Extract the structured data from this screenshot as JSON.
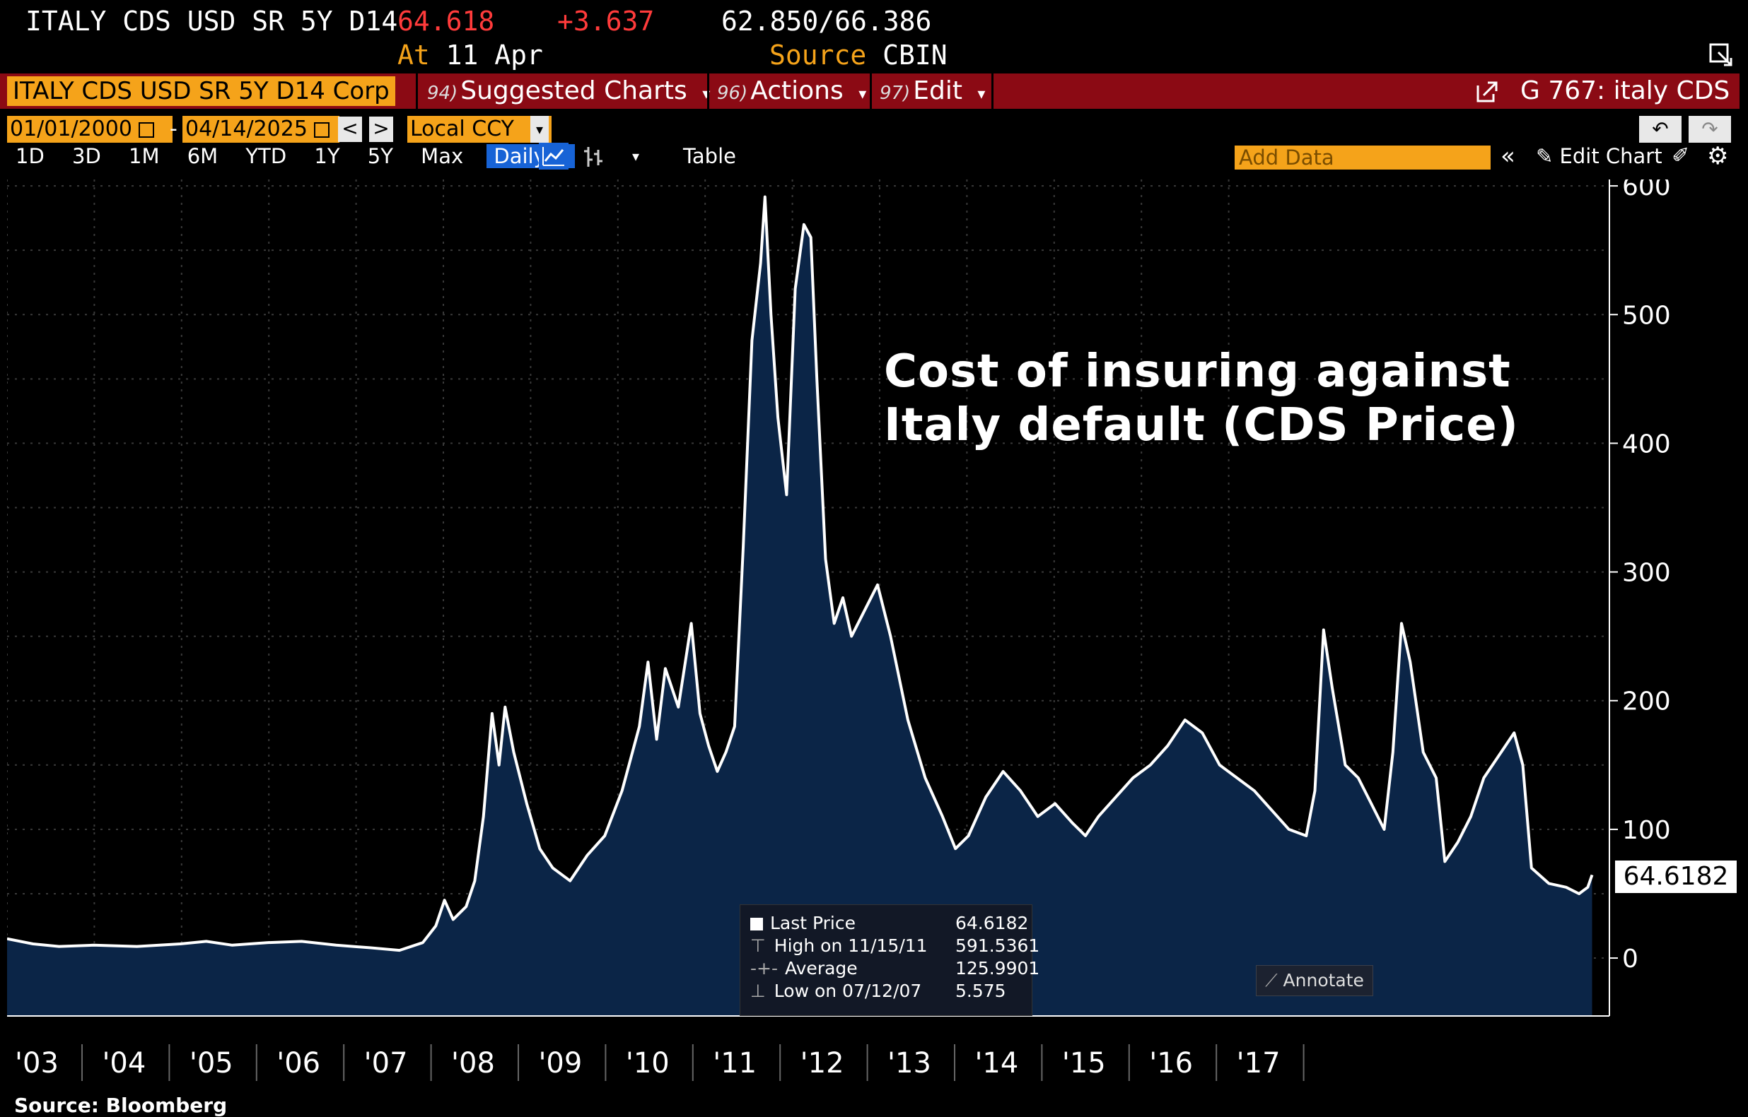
{
  "header": {
    "ticker": "ITALY CDS USD SR 5Y D14",
    "last": "64.618",
    "change": "+3.637",
    "range_low": "62.850",
    "range_sep": "/",
    "range_high": "66.386",
    "at_label": "At",
    "at_date": "11 Apr",
    "source_label": "Source",
    "source_value": "CBIN"
  },
  "command_bar": {
    "security": "ITALY CDS USD SR 5Y D14 Corp",
    "suggested_num": "94)",
    "suggested": "Suggested Charts",
    "actions_num": "96)",
    "actions": "Actions",
    "edit_num": "97)",
    "edit": "Edit",
    "chart_id": "G 767: italy CDS"
  },
  "date_row": {
    "start": "01/01/2000",
    "dash": "-",
    "end": "04/14/2025",
    "prev": "<",
    "next": ">",
    "currency": "Local CCY"
  },
  "toolbar": {
    "ranges": [
      "1D",
      "3D",
      "1M",
      "6M",
      "YTD",
      "1Y",
      "5Y",
      "Max"
    ],
    "frequency": "Daily",
    "table": "Table",
    "add_data_placeholder": "Add Data",
    "edit_chart": "Edit Chart"
  },
  "chart_data": {
    "type": "area",
    "title": "Cost of insuring against Italy default (CDS Price)",
    "title_line1": "Cost of insuring against",
    "title_line2": "Italy default (CDS Price)",
    "xlabel": "",
    "ylabel": "",
    "ylim": [
      -45,
      605
    ],
    "yticks": [
      0,
      100,
      200,
      300,
      400,
      500,
      600
    ],
    "xtick_labels": [
      "'03",
      "'04",
      "'05",
      "'06",
      "'07",
      "'08",
      "'09",
      "'10",
      "'11",
      "'12",
      "'13",
      "'14",
      "'15",
      "'16",
      "'17"
    ],
    "xlim": [
      2003.0,
      2021.5
    ],
    "grid": true,
    "area_color": "#0b2547",
    "line_color": "#ffffff",
    "series": [
      {
        "points": [
          [
            2003.0,
            15
          ],
          [
            2003.3,
            11
          ],
          [
            2003.6,
            9
          ],
          [
            2004.0,
            10
          ],
          [
            2004.5,
            9
          ],
          [
            2005.0,
            11
          ],
          [
            2005.3,
            13
          ],
          [
            2005.6,
            10
          ],
          [
            2006.0,
            12
          ],
          [
            2006.4,
            13
          ],
          [
            2006.8,
            10
          ],
          [
            2007.2,
            8
          ],
          [
            2007.53,
            6
          ],
          [
            2007.8,
            12
          ],
          [
            2007.95,
            25
          ],
          [
            2008.05,
            45
          ],
          [
            2008.15,
            30
          ],
          [
            2008.3,
            40
          ],
          [
            2008.4,
            60
          ],
          [
            2008.5,
            110
          ],
          [
            2008.6,
            190
          ],
          [
            2008.68,
            150
          ],
          [
            2008.75,
            195
          ],
          [
            2008.85,
            160
          ],
          [
            2009.0,
            120
          ],
          [
            2009.15,
            85
          ],
          [
            2009.3,
            70
          ],
          [
            2009.5,
            60
          ],
          [
            2009.7,
            80
          ],
          [
            2009.9,
            95
          ],
          [
            2010.1,
            130
          ],
          [
            2010.3,
            180
          ],
          [
            2010.4,
            230
          ],
          [
            2010.5,
            170
          ],
          [
            2010.6,
            225
          ],
          [
            2010.75,
            195
          ],
          [
            2010.9,
            260
          ],
          [
            2011.0,
            190
          ],
          [
            2011.1,
            165
          ],
          [
            2011.2,
            145
          ],
          [
            2011.3,
            160
          ],
          [
            2011.4,
            180
          ],
          [
            2011.5,
            320
          ],
          [
            2011.6,
            480
          ],
          [
            2011.7,
            540
          ],
          [
            2011.75,
            591.5
          ],
          [
            2011.82,
            500
          ],
          [
            2011.9,
            420
          ],
          [
            2012.0,
            360
          ],
          [
            2012.1,
            520
          ],
          [
            2012.2,
            570
          ],
          [
            2012.28,
            560
          ],
          [
            2012.35,
            450
          ],
          [
            2012.45,
            310
          ],
          [
            2012.55,
            260
          ],
          [
            2012.65,
            280
          ],
          [
            2012.75,
            250
          ],
          [
            2012.9,
            270
          ],
          [
            2013.05,
            290
          ],
          [
            2013.2,
            250
          ],
          [
            2013.4,
            185
          ],
          [
            2013.6,
            140
          ],
          [
            2013.8,
            110
          ],
          [
            2013.95,
            85
          ],
          [
            2014.1,
            95
          ],
          [
            2014.3,
            125
          ],
          [
            2014.5,
            145
          ],
          [
            2014.7,
            130
          ],
          [
            2014.9,
            110
          ],
          [
            2015.1,
            120
          ],
          [
            2015.3,
            105
          ],
          [
            2015.45,
            95
          ],
          [
            2015.6,
            110
          ],
          [
            2015.8,
            125
          ],
          [
            2016.0,
            140
          ],
          [
            2016.2,
            150
          ],
          [
            2016.4,
            165
          ],
          [
            2016.6,
            185
          ],
          [
            2016.8,
            175
          ],
          [
            2017.0,
            150
          ],
          [
            2017.2,
            140
          ],
          [
            2017.4,
            130
          ],
          [
            2017.6,
            115
          ],
          [
            2017.8,
            100
          ],
          [
            2018.0,
            95
          ],
          [
            2018.1,
            130
          ],
          [
            2018.2,
            255
          ],
          [
            2018.3,
            210
          ],
          [
            2018.45,
            150
          ],
          [
            2018.6,
            140
          ],
          [
            2018.75,
            120
          ],
          [
            2018.9,
            100
          ],
          [
            2019.0,
            160
          ],
          [
            2019.1,
            260
          ],
          [
            2019.2,
            230
          ],
          [
            2019.35,
            160
          ],
          [
            2019.5,
            140
          ],
          [
            2019.6,
            75
          ],
          [
            2019.75,
            90
          ],
          [
            2019.9,
            110
          ],
          [
            2020.05,
            140
          ],
          [
            2020.25,
            160
          ],
          [
            2020.4,
            175
          ],
          [
            2020.5,
            150
          ],
          [
            2020.6,
            70
          ],
          [
            2020.8,
            58
          ],
          [
            2021.0,
            55
          ],
          [
            2021.15,
            50
          ],
          [
            2021.25,
            55
          ],
          [
            2021.3,
            64.6
          ]
        ]
      }
    ],
    "last_value_label": "64.6182"
  },
  "legend": {
    "last_label": "Last Price",
    "last_value": "64.6182",
    "high_label": "High on 11/15/11",
    "high_value": "591.5361",
    "avg_label": "Average",
    "avg_value": "125.9901",
    "low_label": "Low on 07/12/07",
    "low_value": "5.575"
  },
  "annotate_label": "Annotate",
  "source_note": "Source: Bloomberg"
}
